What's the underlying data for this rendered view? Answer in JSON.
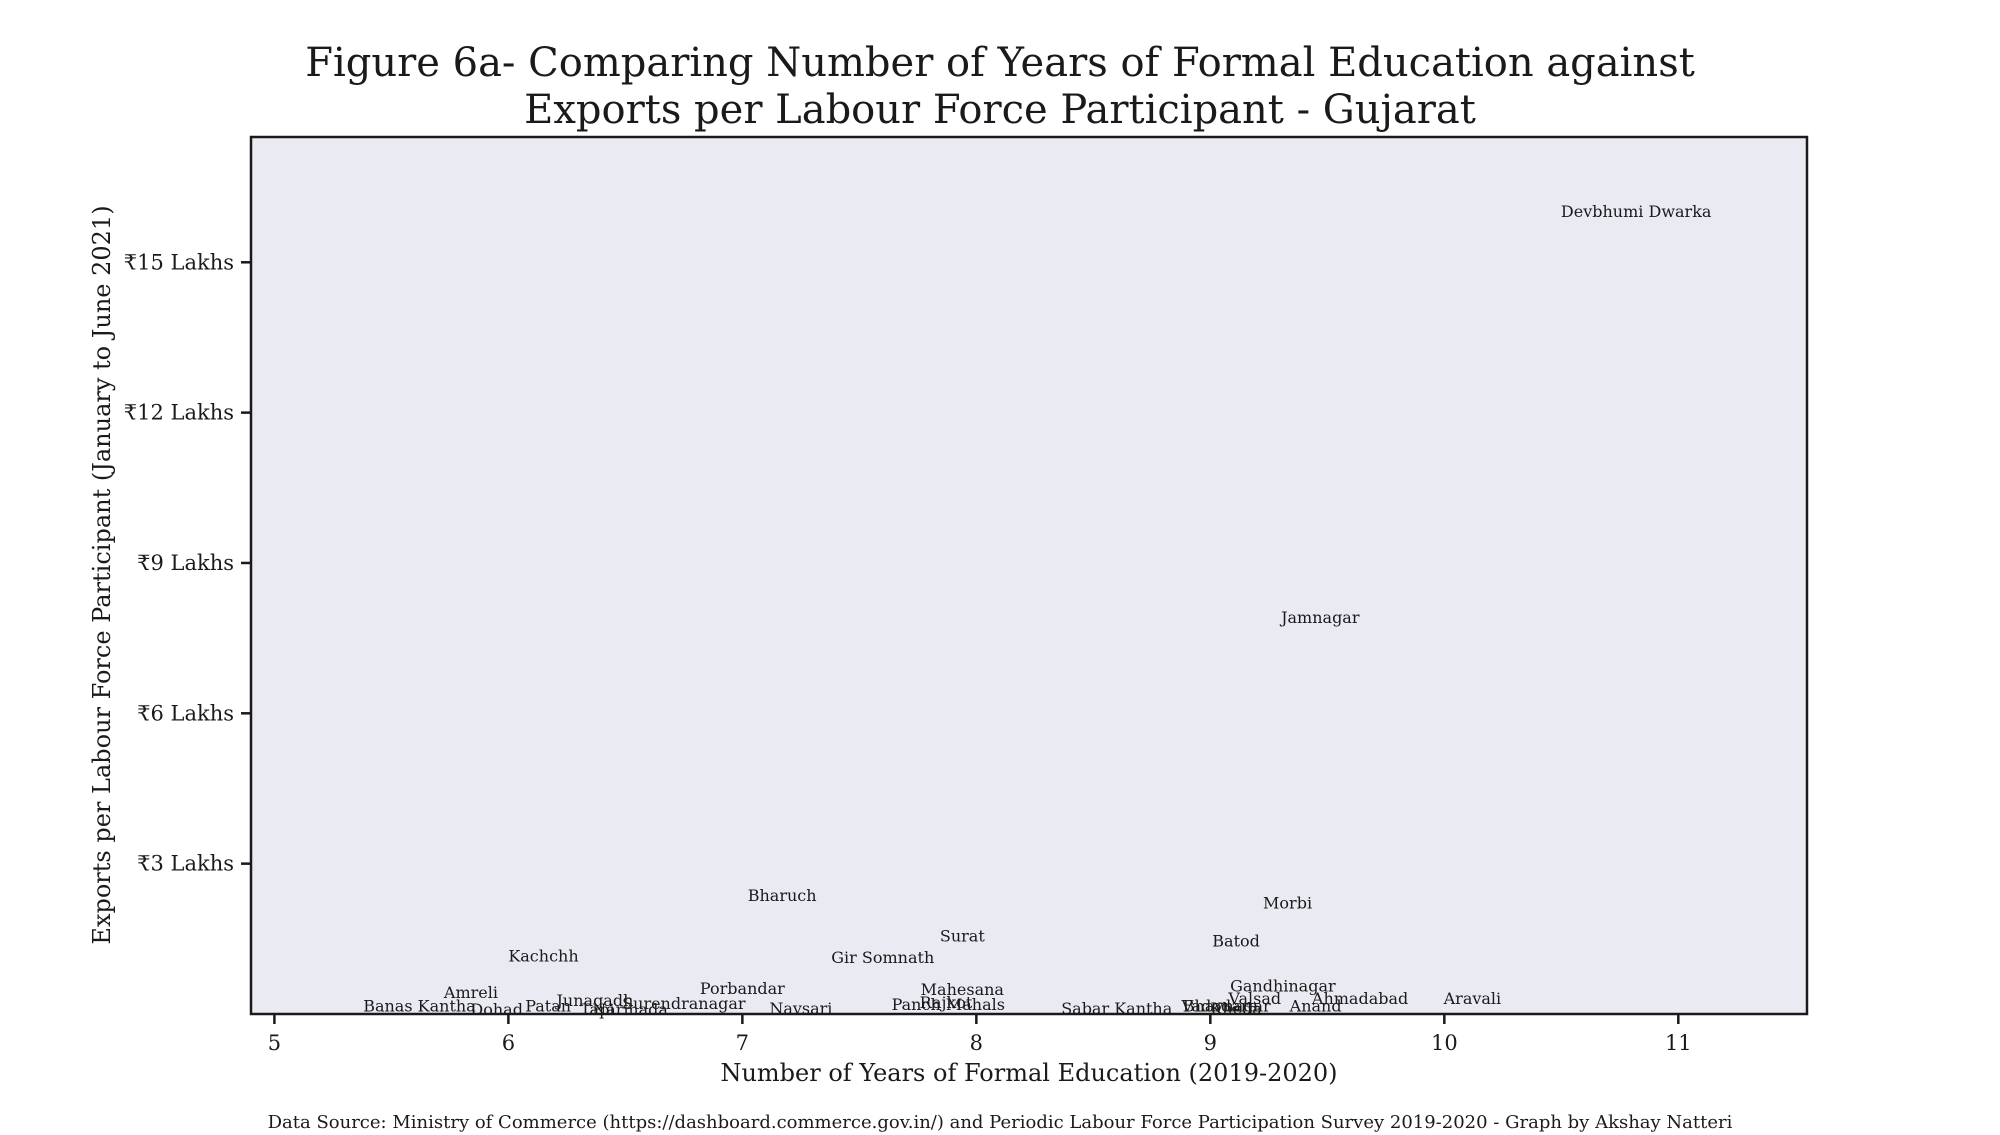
{
  "chart_data": {
    "type": "scatter",
    "title": [
      "Figure 6a- Comparing Number of Years of Formal Education against",
      "Exports per Labour Force Participant  - Gujarat"
    ],
    "xlabel": "Number of Years of Formal Education (2019-2020)",
    "ylabel": "Exports per Labour Force Participant (January to June 2021)",
    "xlim": [
      4.9,
      11.55
    ],
    "ylim": [
      0,
      17.5
    ],
    "x_ticks": [
      5,
      6,
      7,
      8,
      9,
      10,
      11
    ],
    "x_tick_labels": [
      "5",
      "6",
      "7",
      "8",
      "9",
      "10",
      "11"
    ],
    "y_ticks": [
      3,
      6,
      9,
      12,
      15
    ],
    "y_tick_labels": [
      "₹3 Lakhs",
      "₹6 Lakhs",
      "₹9 Lakhs",
      "₹12 Lakhs",
      "₹15 Lakhs"
    ],
    "grid": false,
    "background": "#eaeaf2",
    "points": [
      {
        "label": "Devbhumi Dwarka",
        "x": 10.82,
        "y": 16.0
      },
      {
        "label": "Jamnagar",
        "x": 9.47,
        "y": 7.9
      },
      {
        "label": "Morbi",
        "x": 9.33,
        "y": 2.2
      },
      {
        "label": "Bharuch",
        "x": 7.17,
        "y": 2.35
      },
      {
        "label": "Batod",
        "x": 9.11,
        "y": 1.45
      },
      {
        "label": "Surat",
        "x": 7.94,
        "y": 1.55
      },
      {
        "label": "Kachchh",
        "x": 6.15,
        "y": 1.15
      },
      {
        "label": "Gir Somnath",
        "x": 7.6,
        "y": 1.12
      },
      {
        "label": "Gandhinagar",
        "x": 9.31,
        "y": 0.55
      },
      {
        "label": "Mahesana",
        "x": 7.94,
        "y": 0.48
      },
      {
        "label": "Porbandar",
        "x": 7.0,
        "y": 0.5
      },
      {
        "label": "Amreli",
        "x": 5.84,
        "y": 0.42
      },
      {
        "label": "Aravali",
        "x": 10.12,
        "y": 0.3
      },
      {
        "label": "Ahmadabad",
        "x": 9.64,
        "y": 0.3
      },
      {
        "label": "Valsad",
        "x": 9.19,
        "y": 0.3
      },
      {
        "label": "Junagadh",
        "x": 6.37,
        "y": 0.26
      },
      {
        "label": "Surendranagar",
        "x": 6.75,
        "y": 0.2
      },
      {
        "label": "Rajkot",
        "x": 7.87,
        "y": 0.22
      },
      {
        "label": "Panch Mahals",
        "x": 7.88,
        "y": 0.18
      },
      {
        "label": "Banas Kantha",
        "x": 5.62,
        "y": 0.15
      },
      {
        "label": "Patan",
        "x": 6.17,
        "y": 0.15
      },
      {
        "label": "Vadodara",
        "x": 9.04,
        "y": 0.15
      },
      {
        "label": "Bhavnagar",
        "x": 9.07,
        "y": 0.15
      },
      {
        "label": "Anand",
        "x": 9.45,
        "y": 0.15
      },
      {
        "label": "Dohad",
        "x": 5.95,
        "y": 0.08
      },
      {
        "label": "Tapi",
        "x": 6.38,
        "y": 0.08
      },
      {
        "label": "Narmada",
        "x": 6.52,
        "y": 0.08
      },
      {
        "label": "Navsari",
        "x": 7.25,
        "y": 0.1
      },
      {
        "label": "Sabar Kantha",
        "x": 8.6,
        "y": 0.1
      },
      {
        "label": "Kheda",
        "x": 9.11,
        "y": 0.1
      }
    ],
    "source": "Data Source:  Ministry of Commerce (https://dashboard.commerce.gov.in/) and Periodic Labour Force Participation Survey 2019-2020 - Graph by Akshay Natteri"
  }
}
